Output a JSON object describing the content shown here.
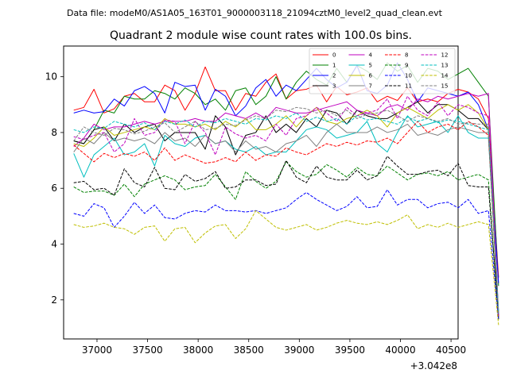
{
  "chart_data": {
    "type": "line",
    "suptitle": "Data file: modeM0/AS1A05_163T01_9000003118_21094cztM0_level2_quad_clean.evt",
    "title": "Quadrant 2 module wise count rates with 100.0s bins.",
    "xlabel": "",
    "ylabel": "",
    "x_offset_label": "+3.042e8",
    "xlim": [
      36670,
      40570
    ],
    "ylim": [
      0.6,
      11.1
    ],
    "xticks": [
      37000,
      37500,
      38000,
      38500,
      39000,
      39500,
      40000,
      40500
    ],
    "yticks": [
      2,
      4,
      6,
      8,
      10
    ],
    "x_start": 36770,
    "x_step": 100,
    "legend_location": "top-right",
    "series": [
      {
        "name": "0",
        "color": "#ff0000",
        "dash": "solid",
        "values": [
          8.8,
          8.9,
          9.55,
          8.7,
          8.85,
          9.3,
          9.4,
          9.1,
          9.1,
          9.7,
          9.5,
          8.8,
          9.4,
          10.35,
          9.5,
          9.5,
          8.8,
          9.4,
          9.3,
          9.8,
          10.1,
          9.2,
          9.5,
          9.55,
          9.7,
          9.1,
          9.65,
          9.35,
          9.45,
          9.6,
          9.1,
          9.3,
          9.15,
          9.6,
          9.1,
          9.2,
          9.1,
          9.4,
          9.55,
          9.45,
          9.2,
          8.5,
          2.8
        ]
      },
      {
        "name": "1",
        "color": "#008000",
        "dash": "solid",
        "values": [
          7.7,
          7.6,
          8.1,
          8.8,
          8.7,
          9.3,
          9.2,
          9.2,
          9.5,
          9.4,
          9.2,
          9.6,
          9.4,
          9.0,
          9.2,
          8.8,
          9.5,
          9.6,
          9.0,
          9.3,
          10.0,
          9.2,
          9.8,
          10.2,
          9.9,
          9.7,
          10.3,
          9.8,
          10.4,
          10.2,
          9.9,
          10.5,
          10.2,
          10.4,
          9.8,
          10.3,
          10.2,
          9.9,
          10.1,
          10.3,
          9.8,
          9.3,
          2.5
        ]
      },
      {
        "name": "2",
        "color": "#0000ff",
        "dash": "solid",
        "values": [
          8.7,
          8.8,
          8.7,
          8.75,
          9.2,
          8.95,
          9.5,
          9.65,
          9.4,
          8.7,
          9.8,
          9.65,
          9.7,
          8.8,
          9.55,
          9.3,
          8.6,
          8.95,
          9.6,
          9.9,
          9.3,
          9.7,
          9.5,
          9.9,
          10.3,
          9.9,
          9.6,
          9.8,
          10.4,
          9.5,
          9.4,
          9.7,
          10.5,
          9.9,
          9.1,
          9.6,
          9.5,
          9.4,
          9.3,
          9.45,
          9.0,
          8.1,
          2.6
        ]
      },
      {
        "name": "3",
        "color": "#000000",
        "dash": "solid",
        "values": [
          7.7,
          7.6,
          8.1,
          8.2,
          7.7,
          8.3,
          8.0,
          8.2,
          8.3,
          7.7,
          8.0,
          8.0,
          8.0,
          7.4,
          8.6,
          8.2,
          7.2,
          7.9,
          8.0,
          8.6,
          8.0,
          8.3,
          8.0,
          8.5,
          8.2,
          8.8,
          8.7,
          8.3,
          8.8,
          8.6,
          8.5,
          8.5,
          8.7,
          8.9,
          9.1,
          8.7,
          9.0,
          9.0,
          8.8,
          8.5,
          8.5,
          8.1,
          1.3
        ]
      },
      {
        "name": "4",
        "color": "#bf00bf",
        "dash": "solid",
        "values": [
          7.5,
          7.8,
          8.3,
          8.1,
          8.2,
          8.2,
          8.3,
          8.4,
          8.3,
          8.4,
          8.4,
          8.4,
          8.5,
          8.4,
          8.4,
          8.7,
          8.6,
          8.5,
          8.7,
          8.5,
          8.9,
          8.8,
          8.7,
          8.7,
          8.8,
          8.9,
          9.0,
          9.1,
          8.8,
          8.7,
          8.6,
          8.9,
          9.0,
          8.8,
          9.2,
          9.1,
          9.3,
          9.2,
          9.3,
          9.4,
          9.3,
          9.4,
          1.5
        ]
      },
      {
        "name": "5",
        "color": "#00bfbf",
        "dash": "solid",
        "values": [
          7.25,
          6.4,
          7.2,
          7.5,
          7.8,
          7.2,
          7.3,
          7.6,
          6.8,
          7.9,
          7.6,
          7.5,
          7.8,
          7.9,
          7.6,
          7.7,
          7.4,
          7.3,
          7.5,
          7.2,
          7.3,
          7.3,
          7.7,
          8.1,
          8.2,
          8.1,
          7.8,
          7.9,
          8.0,
          8.4,
          7.6,
          7.3,
          8.0,
          8.6,
          8.2,
          8.3,
          8.4,
          8.0,
          8.6,
          8.0,
          7.8,
          7.8,
          1.6
        ]
      },
      {
        "name": "6",
        "color": "#bfbf00",
        "dash": "solid",
        "values": [
          7.6,
          7.5,
          7.8,
          8.2,
          7.9,
          8.0,
          8.1,
          8.2,
          8.1,
          8.5,
          8.3,
          8.3,
          8.2,
          8.3,
          8.1,
          8.4,
          8.2,
          8.5,
          8.1,
          8.1,
          8.3,
          8.6,
          8.2,
          8.6,
          8.9,
          8.4,
          8.3,
          8.5,
          8.6,
          8.8,
          8.6,
          8.2,
          8.7,
          8.9,
          8.7,
          8.5,
          8.8,
          9.0,
          8.8,
          9.0,
          8.7,
          8.1,
          1.4
        ]
      },
      {
        "name": "7",
        "color": "#808080",
        "dash": "solid",
        "values": [
          7.3,
          7.8,
          7.6,
          8.0,
          7.7,
          7.8,
          7.7,
          7.8,
          7.6,
          8.0,
          7.7,
          7.8,
          7.5,
          7.9,
          7.6,
          7.7,
          7.3,
          7.7,
          7.4,
          7.5,
          7.3,
          7.6,
          7.7,
          7.9,
          7.5,
          8.0,
          8.3,
          8.0,
          8.0,
          8.0,
          8.2,
          8.0,
          8.1,
          8.3,
          7.9,
          8.0,
          7.9,
          8.1,
          8.2,
          8.1,
          8.0,
          8.0,
          1.5
        ]
      },
      {
        "name": "8",
        "color": "#ff0000",
        "dash": "dashed",
        "values": [
          7.55,
          7.25,
          6.95,
          7.25,
          7.1,
          7.25,
          7.15,
          7.3,
          7.0,
          7.45,
          7.0,
          7.2,
          7.05,
          6.9,
          6.95,
          7.1,
          6.95,
          7.3,
          7.0,
          7.2,
          7.15,
          7.45,
          7.3,
          7.2,
          7.4,
          7.6,
          7.5,
          7.65,
          7.55,
          7.7,
          7.65,
          7.8,
          7.6,
          8.0,
          8.4,
          8.0,
          8.2,
          8.3,
          8.1,
          8.4,
          8.2,
          7.9,
          1.4
        ]
      },
      {
        "name": "9",
        "color": "#008000",
        "dash": "dashed",
        "values": [
          6.05,
          5.85,
          5.9,
          5.9,
          5.75,
          6.15,
          5.7,
          6.15,
          6.3,
          6.45,
          6.3,
          5.95,
          6.05,
          6.1,
          6.5,
          6.05,
          5.6,
          6.6,
          6.25,
          6.0,
          6.25,
          6.95,
          6.6,
          6.4,
          6.5,
          6.85,
          6.65,
          6.4,
          6.75,
          6.5,
          6.45,
          6.8,
          6.55,
          6.3,
          6.5,
          6.55,
          6.45,
          6.6,
          6.3,
          6.4,
          6.5,
          6.3,
          1.3
        ]
      },
      {
        "name": "10",
        "color": "#0000ff",
        "dash": "dashed",
        "values": [
          5.1,
          5.0,
          5.45,
          5.3,
          4.6,
          5.0,
          5.5,
          5.1,
          5.4,
          4.95,
          4.9,
          5.1,
          5.2,
          5.15,
          5.4,
          5.2,
          5.2,
          5.15,
          5.2,
          5.1,
          5.2,
          5.3,
          5.6,
          5.85,
          5.6,
          5.4,
          5.2,
          5.35,
          5.7,
          5.3,
          5.35,
          5.95,
          5.4,
          5.6,
          5.6,
          5.3,
          5.45,
          5.5,
          5.3,
          5.6,
          5.1,
          5.2,
          1.3
        ]
      },
      {
        "name": "11",
        "color": "#000000",
        "dash": "dashed",
        "values": [
          6.2,
          6.25,
          5.95,
          6.0,
          5.75,
          6.7,
          6.2,
          6.05,
          6.75,
          6.0,
          5.95,
          6.5,
          6.25,
          6.35,
          6.6,
          6.0,
          6.05,
          6.3,
          6.3,
          6.1,
          6.15,
          7.0,
          6.4,
          6.2,
          6.8,
          6.4,
          6.3,
          6.3,
          6.65,
          6.3,
          6.45,
          7.15,
          6.8,
          6.5,
          6.5,
          6.6,
          6.65,
          6.45,
          6.9,
          6.1,
          6.05,
          6.05,
          1.4
        ]
      },
      {
        "name": "12",
        "color": "#bf00bf",
        "dash": "dashed",
        "values": [
          7.85,
          7.75,
          7.9,
          8.0,
          7.3,
          7.6,
          8.5,
          7.9,
          8.0,
          8.45,
          8.4,
          7.6,
          8.4,
          8.0,
          7.2,
          8.2,
          7.95,
          7.8,
          7.9,
          7.7,
          8.3,
          7.9,
          8.5,
          8.6,
          8.9,
          8.7,
          8.4,
          8.9,
          8.6,
          8.7,
          8.8,
          9.2,
          8.5,
          9.3,
          8.8,
          8.6,
          9.1,
          8.6,
          9.0,
          8.9,
          8.7,
          8.6,
          1.4
        ]
      },
      {
        "name": "13",
        "color": "#00bfbf",
        "dash": "dashed",
        "values": [
          8.1,
          8.0,
          8.2,
          8.15,
          8.4,
          8.3,
          8.2,
          8.35,
          8.1,
          8.4,
          8.3,
          8.45,
          8.2,
          8.4,
          8.35,
          8.5,
          8.4,
          8.3,
          8.5,
          8.45,
          8.6,
          8.5,
          8.7,
          8.4,
          8.55,
          8.4,
          8.5,
          8.3,
          8.6,
          8.45,
          8.5,
          8.4,
          8.3,
          8.55,
          8.4,
          8.5,
          8.35,
          8.45,
          8.4,
          8.3,
          8.2,
          8.1,
          1.5
        ]
      },
      {
        "name": "14",
        "color": "#bfbf00",
        "dash": "dashed",
        "values": [
          4.7,
          4.6,
          4.65,
          4.75,
          4.6,
          4.55,
          4.35,
          4.6,
          4.65,
          4.1,
          4.55,
          4.6,
          4.05,
          4.4,
          4.65,
          4.7,
          4.2,
          4.55,
          5.2,
          4.9,
          4.6,
          4.5,
          4.6,
          4.7,
          4.5,
          4.6,
          4.75,
          4.85,
          4.75,
          4.7,
          4.8,
          4.7,
          4.85,
          5.05,
          4.55,
          4.7,
          4.6,
          4.75,
          4.6,
          4.7,
          4.8,
          4.7,
          1.1
        ]
      },
      {
        "name": "15",
        "color": "#808080",
        "dash": "dashed",
        "values": [
          7.7,
          8.2,
          8.0,
          7.9,
          8.15,
          8.1,
          7.95,
          8.05,
          8.2,
          8.35,
          8.0,
          8.2,
          8.4,
          8.1,
          8.15,
          8.3,
          8.25,
          8.45,
          8.6,
          8.5,
          8.8,
          8.75,
          8.9,
          8.85,
          8.7,
          8.8,
          8.6,
          8.8,
          8.5,
          8.65,
          8.7,
          8.8,
          8.6,
          8.4,
          8.6,
          8.5,
          8.4,
          8.5,
          8.3,
          8.35,
          8.3,
          8.3,
          1.5
        ]
      }
    ]
  }
}
